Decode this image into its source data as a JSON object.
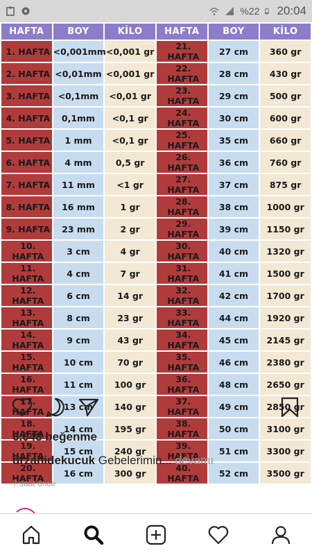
{
  "status_bar": {
    "battery": "%22",
    "time": "20:04"
  },
  "table": {
    "headers": [
      "HAFTA",
      "BOY",
      "KİLO",
      "HAFTA",
      "BOY",
      "KİLO"
    ],
    "rows": [
      [
        "1. HAFTA",
        "<0,001mm",
        "<0,001 gr",
        "21. HAFTA",
        "27 cm",
        "360 gr"
      ],
      [
        "2. HAFTA",
        "<0,01mm",
        "<0,001 gr",
        "22. HAFTA",
        "28 cm",
        "430 gr"
      ],
      [
        "3. HAFTA",
        "<0,1mm",
        "<0,01 gr",
        "23. HAFTA",
        "29 cm",
        "500 gr"
      ],
      [
        "4. HAFTA",
        "0,1mm",
        "<0,1 gr",
        "24. HAFTA",
        "30 cm",
        "600 gr"
      ],
      [
        "5. HAFTA",
        "1 mm",
        "<0,1 gr",
        "25. HAFTA",
        "35 cm",
        "660 gr"
      ],
      [
        "6. HAFTA",
        "4 mm",
        "0,5 gr",
        "26. HAFTA",
        "36 cm",
        "760 gr"
      ],
      [
        "7. HAFTA",
        "11 mm",
        "<1 gr",
        "27. HAFTA",
        "37 cm",
        "875 gr"
      ],
      [
        "8. HAFTA",
        "16 mm",
        "1 gr",
        "28. HAFTA",
        "38 cm",
        "1000 gr"
      ],
      [
        "9. HAFTA",
        "23 mm",
        "2 gr",
        "29. HAFTA",
        "39 cm",
        "1150 gr"
      ],
      [
        "10. HAFTA",
        "3 cm",
        "4 gr",
        "30. HAFTA",
        "40 cm",
        "1320 gr"
      ],
      [
        "11. HAFTA",
        "4 cm",
        "7 gr",
        "31. HAFTA",
        "41 cm",
        "1500 gr"
      ],
      [
        "12. HAFTA",
        "6 cm",
        "14 gr",
        "32. HAFTA",
        "42 cm",
        "1700 gr"
      ],
      [
        "13. HAFTA",
        "8 cm",
        "23 gr",
        "33. HAFTA",
        "44 cm",
        "1920 gr"
      ],
      [
        "14. HAFTA",
        "9 cm",
        "43 gr",
        "34. HAFTA",
        "45 cm",
        "2145 gr"
      ],
      [
        "15. HAFTA",
        "10 cm",
        "70 gr",
        "35. HAFTA",
        "46 cm",
        "2380 gr"
      ],
      [
        "16. HAFTA",
        "11 cm",
        "100 gr",
        "36. HAFTA",
        "48 cm",
        "2650 gr"
      ],
      [
        "17. HAFTA",
        "13 cm",
        "140 gr",
        "37. HAFTA",
        "49 cm",
        "2850 gr"
      ],
      [
        "18. HAFTA",
        "14 cm",
        "195 gr",
        "38. HAFTA",
        "50 cm",
        "3100 gr"
      ],
      [
        "19. HAFTA",
        "15 cm",
        "240 gr",
        "39. HAFTA",
        "51 cm",
        "3300 gr"
      ],
      [
        "20. HAFTA",
        "16 cm",
        "300 gr",
        "40. HAFTA",
        "52 cm",
        "3500 gr"
      ]
    ]
  },
  "post": {
    "likes": "6.048 beğenme",
    "username": "drzahidekucuk",
    "caption": "Gebelerimin...",
    "more": "devamı",
    "time_ago": "7 saat önce"
  },
  "actions": {
    "like_icon": "heart-icon",
    "comment_icon": "comment-icon",
    "share_icon": "send-icon",
    "save_icon": "bookmark-icon"
  },
  "bottom_nav": {
    "items": [
      "home-icon",
      "search-icon",
      "add-icon",
      "activity-heart-icon",
      "profile-icon"
    ]
  },
  "colors": {
    "header_purple": "#8b7dc9",
    "week_red": "#b03b3b",
    "boy_blue": "#c8dcef",
    "kilo_cream": "#f3e8d4"
  }
}
